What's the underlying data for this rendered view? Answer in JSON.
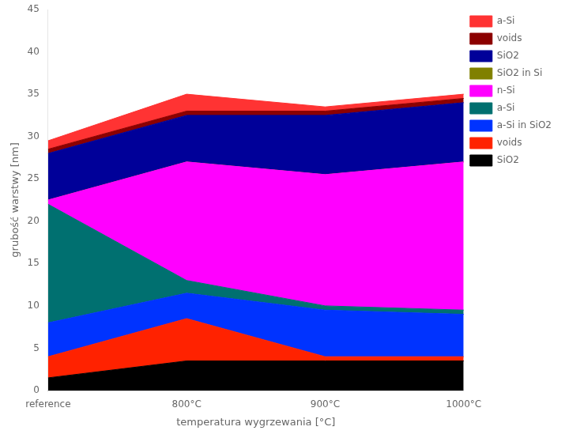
{
  "chart_data": {
    "type": "area",
    "stacked": true,
    "categories": [
      "reference",
      "800°C",
      "900°C",
      "1000°C"
    ],
    "series": [
      {
        "name": "SiO2",
        "color": "#000000",
        "values": [
          1.5,
          3.5,
          3.5,
          3.5
        ]
      },
      {
        "name": "voids",
        "color": "#ff2200",
        "values": [
          2.5,
          5.0,
          0.5,
          0.5
        ]
      },
      {
        "name": "a-Si in SiO2",
        "color": "#0033ff",
        "values": [
          4.0,
          3.0,
          5.5,
          5.0
        ]
      },
      {
        "name": "a-Si",
        "color": "#007070",
        "values": [
          14.0,
          1.5,
          0.5,
          0.5
        ]
      },
      {
        "name": "n-Si",
        "color": "#ff00ff",
        "values": [
          0.5,
          14.0,
          15.5,
          17.5
        ]
      },
      {
        "name": "SiO2 in Si",
        "color": "#808000",
        "values": [
          0.0,
          0.0,
          0.0,
          0.0
        ]
      },
      {
        "name": "SiO2",
        "color": "#000099",
        "values": [
          5.5,
          5.5,
          7.0,
          7.0
        ]
      },
      {
        "name": "voids",
        "color": "#8b0000",
        "values": [
          0.5,
          0.5,
          0.5,
          0.5
        ]
      },
      {
        "name": "a-Si",
        "color": "#ff3333",
        "values": [
          1.0,
          2.0,
          0.5,
          0.5
        ]
      }
    ],
    "xlabel": "temperatura wygrzewania [°C]",
    "ylabel": "grubość warstwy [nm]",
    "ylim": [
      0,
      45
    ],
    "yticks": [
      0,
      5,
      10,
      15,
      20,
      25,
      30,
      35,
      40,
      45
    ],
    "grid": false,
    "legend": "right"
  }
}
